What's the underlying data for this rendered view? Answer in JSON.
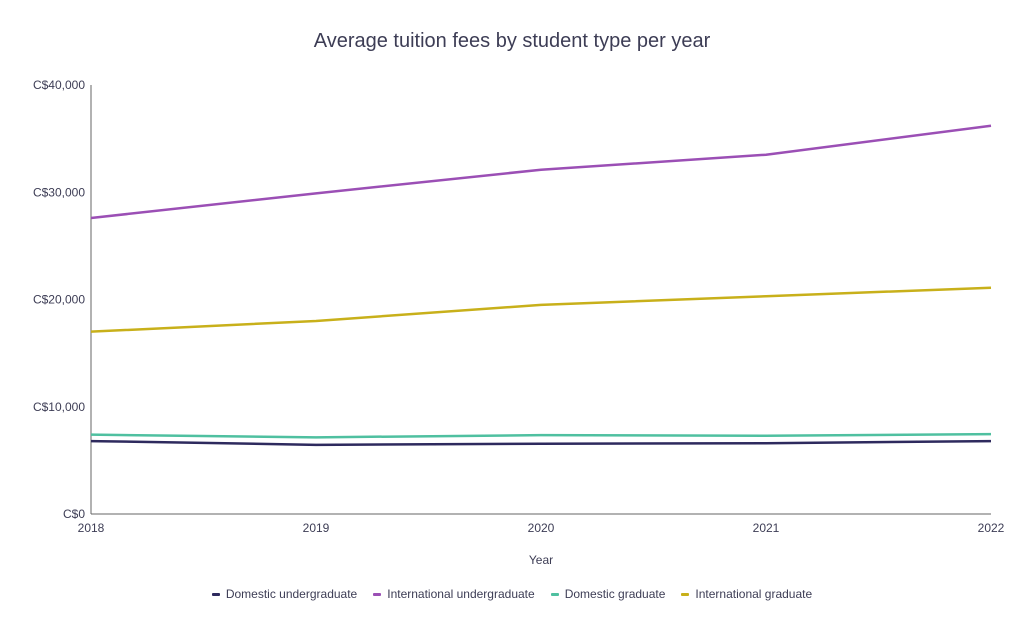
{
  "chart_data": {
    "type": "line",
    "title": "Average tuition fees by student type per year",
    "xlabel": "Year",
    "ylabel": "",
    "x": [
      "2018",
      "2019",
      "2020",
      "2021",
      "2022"
    ],
    "ylim": [
      0,
      40000
    ],
    "yticks": [
      "C$0",
      "C$10,000",
      "C$20,000",
      "C$30,000",
      "C$40,000"
    ],
    "ytick_values": [
      0,
      10000,
      20000,
      30000,
      40000
    ],
    "grid": false,
    "legend_position": "bottom",
    "series": [
      {
        "name": "Domestic undergraduate",
        "color": "#2e2a5e",
        "values": [
          6800,
          6450,
          6550,
          6600,
          6800
        ]
      },
      {
        "name": "International undergraduate",
        "color": "#9b4fb5",
        "values": [
          27600,
          29900,
          32100,
          33500,
          36200
        ]
      },
      {
        "name": "Domestic graduate",
        "color": "#4fc0a0",
        "values": [
          7400,
          7150,
          7350,
          7300,
          7450
        ]
      },
      {
        "name": "International graduate",
        "color": "#c8b01a",
        "values": [
          17000,
          18000,
          19500,
          20300,
          21100
        ]
      }
    ]
  }
}
